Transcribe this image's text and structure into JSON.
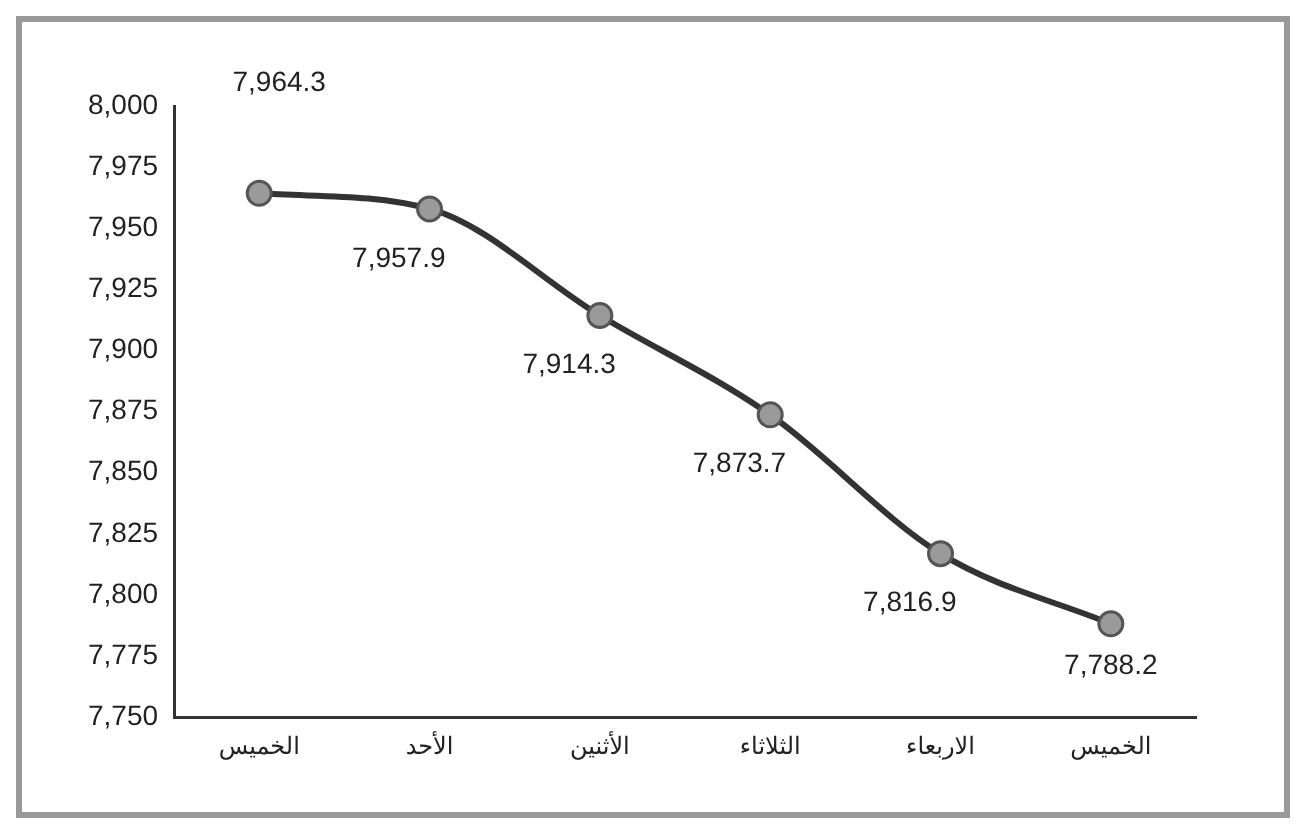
{
  "chart_data": {
    "type": "line",
    "categories": [
      "الخميس",
      "الأحد",
      "الأثنين",
      "الثلاثاء",
      "الاربعاء",
      "الخميس"
    ],
    "series": [
      {
        "color": "#333333",
        "values": [
          7964.3,
          7957.9,
          7914.3,
          7873.7,
          7816.9,
          7788.2
        ],
        "value_labels": [
          "7,964.3",
          "7,957.9",
          "7,914.3",
          "7,873.7",
          "7,816.9",
          "7,788.2"
        ]
      }
    ],
    "ylim": [
      7750,
      8000
    ],
    "yticks": [
      {
        "value": 7750,
        "label": "7,750"
      },
      {
        "value": 7775,
        "label": "7,775"
      },
      {
        "value": 7800,
        "label": "7,800"
      },
      {
        "value": 7825,
        "label": "7,825"
      },
      {
        "value": 7850,
        "label": "7,850"
      },
      {
        "value": 7875,
        "label": "7,875"
      },
      {
        "value": 7900,
        "label": "7,900"
      },
      {
        "value": 7925,
        "label": "7,925"
      },
      {
        "value": 7950,
        "label": "7,950"
      },
      {
        "value": 7975,
        "label": "7,975"
      },
      {
        "value": 8000,
        "label": "8,000"
      }
    ],
    "grid": false,
    "legend": false,
    "marker": "circle",
    "line_style": "solid"
  }
}
